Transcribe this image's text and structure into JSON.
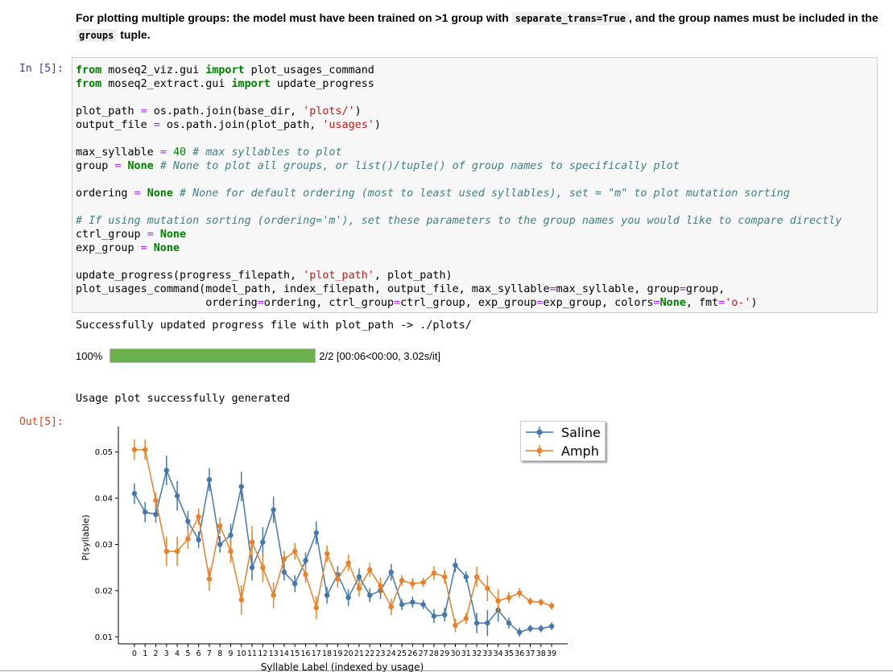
{
  "markdown": {
    "text_before": "For plotting multiple groups: the model must have been trained on >1 group with ",
    "code1": "separate_trans=True",
    "text_middle": ", and the group names must be included in the ",
    "code2": "groups",
    "text_after": " tuple."
  },
  "in_prompt": "In [5]:",
  "out_prompt": "Out[5]:",
  "stdout1": "Successfully updated progress file with plot_path -> ./plots/",
  "progress": {
    "percent_label": "100%",
    "fraction": 1.0,
    "status": "2/2 [00:06<00:00, 3.02s/it]"
  },
  "stdout2": "Usage plot successfully generated",
  "colors": {
    "saline": "#4477aa",
    "amph": "#e8822a"
  },
  "chart_data": {
    "type": "line",
    "xlabel": "Syllable Label (indexed by usage)",
    "ylabel": "P(syllable)",
    "x": [
      0,
      1,
      2,
      3,
      4,
      5,
      6,
      7,
      8,
      9,
      10,
      11,
      12,
      13,
      14,
      15,
      16,
      17,
      18,
      19,
      20,
      21,
      22,
      23,
      24,
      25,
      26,
      27,
      28,
      29,
      30,
      31,
      32,
      33,
      34,
      35,
      36,
      37,
      38,
      39
    ],
    "yticks": [
      0.01,
      0.02,
      0.03,
      0.04,
      0.05
    ],
    "ylim": [
      0.0085,
      0.0555
    ],
    "xlim": [
      -1.5,
      40.5
    ],
    "legend_position": "upper-right",
    "series": [
      {
        "name": "Saline",
        "color": "#4477aa",
        "values": [
          0.041,
          0.037,
          0.0365,
          0.046,
          0.0405,
          0.035,
          0.031,
          0.044,
          0.03,
          0.032,
          0.0425,
          0.025,
          0.0305,
          0.0375,
          0.024,
          0.0215,
          0.0265,
          0.0325,
          0.019,
          0.0235,
          0.0185,
          0.023,
          0.019,
          0.02,
          0.024,
          0.017,
          0.0175,
          0.017,
          0.0145,
          0.0148,
          0.0255,
          0.023,
          0.013,
          0.013,
          0.0158,
          0.013,
          0.011,
          0.0118,
          0.0118,
          0.0123
        ],
        "errors": [
          0.0022,
          0.0022,
          0.0018,
          0.0032,
          0.0032,
          0.0022,
          0.0018,
          0.0025,
          0.0018,
          0.0025,
          0.0032,
          0.0028,
          0.0032,
          0.0028,
          0.0018,
          0.0018,
          0.0018,
          0.0025,
          0.0018,
          0.0018,
          0.0018,
          0.0018,
          0.0015,
          0.0018,
          0.0018,
          0.0012,
          0.0012,
          0.001,
          0.0015,
          0.0015,
          0.0015,
          0.0012,
          0.0022,
          0.0028,
          0.0025,
          0.0012,
          0.001,
          0.0008,
          0.0008,
          0.0008
        ]
      },
      {
        "name": "Amph",
        "color": "#e8822a",
        "values": [
          0.0505,
          0.0505,
          0.0395,
          0.0285,
          0.0285,
          0.0312,
          0.036,
          0.0225,
          0.034,
          0.0285,
          0.018,
          0.0305,
          0.025,
          0.019,
          0.0268,
          0.0285,
          0.0235,
          0.0163,
          0.028,
          0.0225,
          0.026,
          0.0205,
          0.0245,
          0.021,
          0.0165,
          0.0222,
          0.0215,
          0.0218,
          0.0238,
          0.023,
          0.0125,
          0.014,
          0.023,
          0.0205,
          0.0178,
          0.0185,
          0.0195,
          0.0177,
          0.0175,
          0.0167
        ],
        "errors": [
          0.0022,
          0.0022,
          0.0018,
          0.0032,
          0.0032,
          0.0022,
          0.0018,
          0.0025,
          0.0018,
          0.0025,
          0.0032,
          0.0035,
          0.0032,
          0.0028,
          0.0018,
          0.0018,
          0.0018,
          0.0025,
          0.0018,
          0.0018,
          0.0018,
          0.0018,
          0.0015,
          0.0018,
          0.0018,
          0.0012,
          0.0012,
          0.001,
          0.0015,
          0.0015,
          0.0015,
          0.0012,
          0.0022,
          0.0028,
          0.0025,
          0.0012,
          0.001,
          0.0008,
          0.0008,
          0.0008
        ]
      }
    ]
  },
  "code": {
    "l1a": "from",
    "l1b": " moseq2_viz.gui ",
    "l1c": "import",
    "l1d": " plot_usages_command",
    "l2a": "from",
    "l2b": " moseq2_extract.gui ",
    "l2c": "import",
    "l2d": " update_progress",
    "l4a": "plot_path ",
    "l4b": "=",
    "l4c": " os.path.join(base_dir, ",
    "l4d": "'plots/'",
    "l4e": ")",
    "l5a": "output_file ",
    "l5b": "=",
    "l5c": " os.path.join(plot_path, ",
    "l5d": "'usages'",
    "l5e": ")",
    "l7a": "max_syllable ",
    "l7b": "=",
    "l7c": " ",
    "l7d": "40",
    "l7e": " ",
    "l7f": "# max syllables to plot",
    "l8a": "group ",
    "l8b": "=",
    "l8c": " ",
    "l8d": "None",
    "l8e": " ",
    "l8f": "# None to plot all groups, or list()/tuple() of group names to specifically plot",
    "l10a": "ordering ",
    "l10b": "=",
    "l10c": " ",
    "l10d": "None",
    "l10e": " ",
    "l10f": "# None for default ordering (most to least used syllables), set = \"m\" to plot mutation sorting",
    "l12": "# If using mutation sorting (ordering='m'), set these parameters to the group names you would like to compare directly",
    "l13a": "ctrl_group ",
    "l13b": "=",
    "l13c": " ",
    "l13d": "None",
    "l14a": "exp_group ",
    "l14b": "=",
    "l14c": " ",
    "l14d": "None",
    "l16a": "update_progress(progress_filepath, ",
    "l16b": "'plot_path'",
    "l16c": ", plot_path)",
    "l17a": "plot_usages_command(model_path, index_filepath, output_file, max_syllable",
    "l17b": "=",
    "l17c": "max_syllable, group",
    "l17d": "=",
    "l17e": "group,",
    "l18a": "                    ordering",
    "l18b": "=",
    "l18c": "ordering, ctrl_group",
    "l18d": "=",
    "l18e": "ctrl_group, exp_group",
    "l18f": "=",
    "l18g": "exp_group, colors",
    "l18h": "=",
    "l18i": "None",
    "l18j": ", fmt",
    "l18k": "=",
    "l18l": "'o-'",
    "l18m": ")"
  }
}
